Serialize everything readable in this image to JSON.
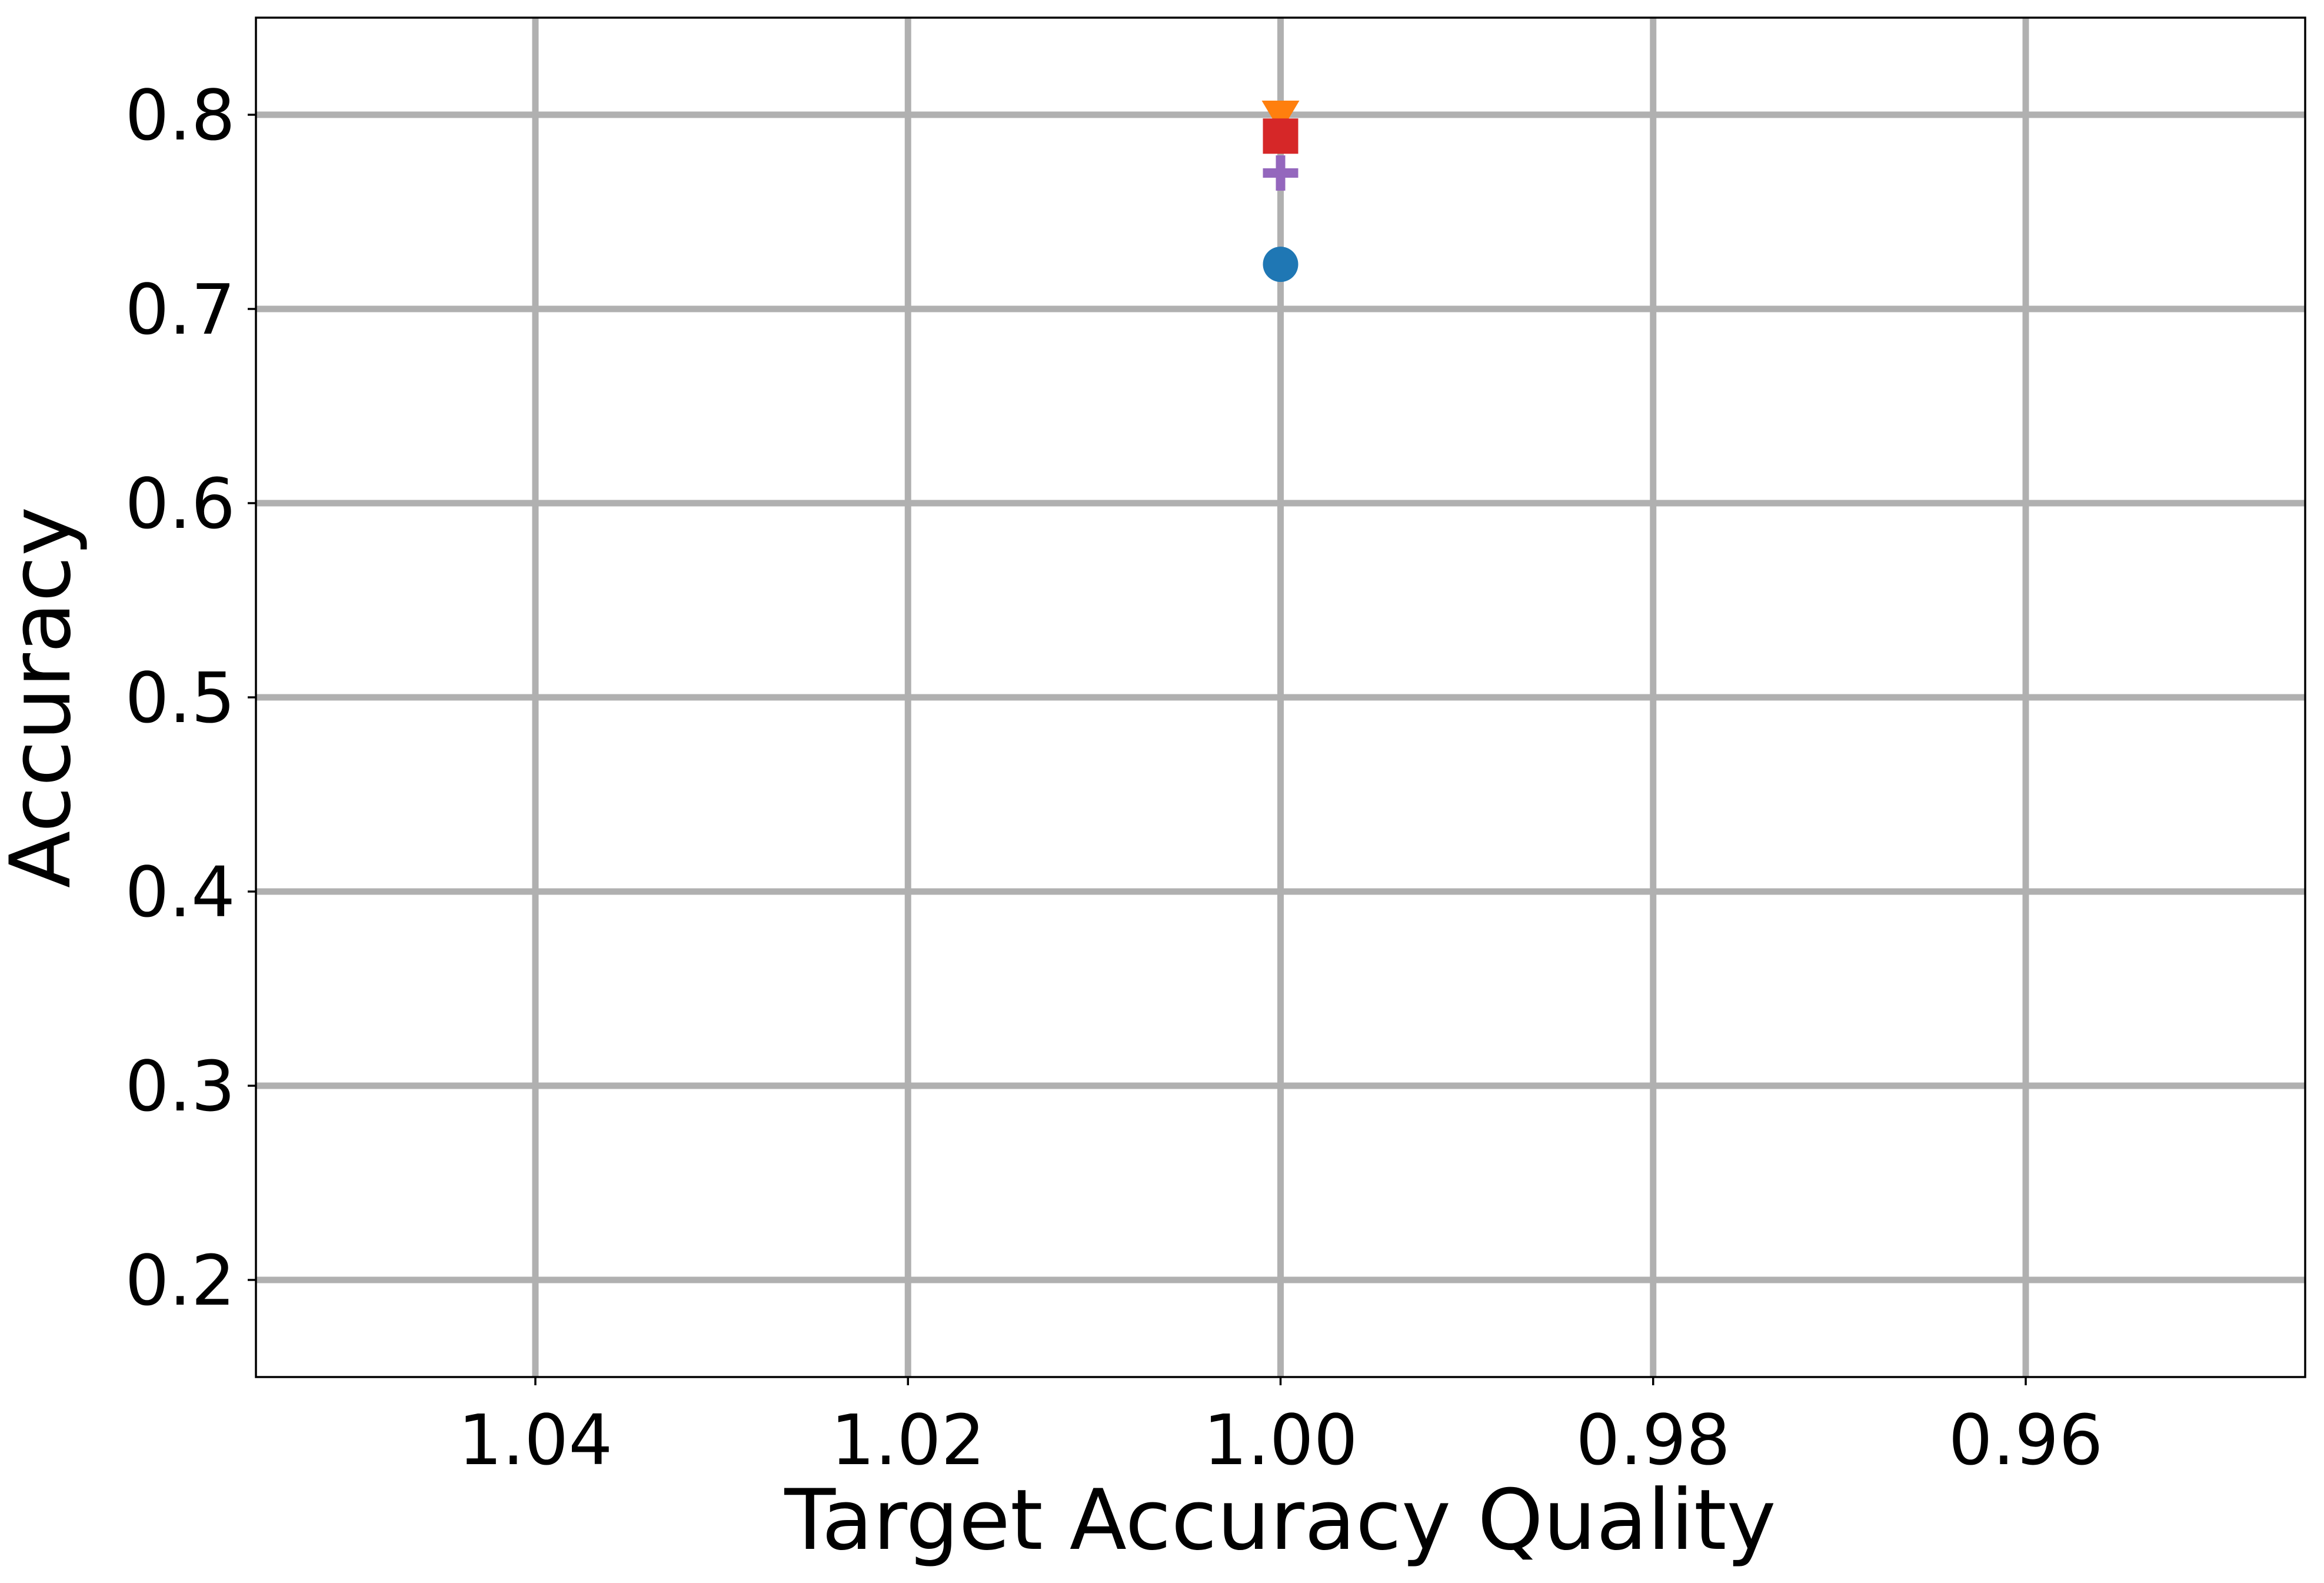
{
  "chart_data": {
    "type": "scatter",
    "xlabel": "Target Accuracy Quality",
    "ylabel": "Accuracy",
    "x_inverted": true,
    "xlim": [
      1.055,
      0.945
    ],
    "ylim": [
      0.15,
      0.85
    ],
    "xticks": [
      1.04,
      1.02,
      1.0,
      0.98,
      0.96
    ],
    "xtick_labels": [
      "1.04",
      "1.02",
      "1.00",
      "0.98",
      "0.96"
    ],
    "yticks": [
      0.2,
      0.3,
      0.4,
      0.5,
      0.6,
      0.7,
      0.8
    ],
    "ytick_labels": [
      "0.2",
      "0.3",
      "0.4",
      "0.5",
      "0.6",
      "0.7",
      "0.8"
    ],
    "grid": true,
    "series": [
      {
        "x": [
          1.0
        ],
        "y": [
          0.723
        ],
        "marker": "circle",
        "color": "#1f77b4"
      },
      {
        "x": [
          1.0
        ],
        "y": [
          0.8
        ],
        "marker": "triangle-down",
        "color": "#ff7f0e"
      },
      {
        "x": [
          1.0
        ],
        "y": [
          0.789
        ],
        "marker": "square",
        "color": "#d62728"
      },
      {
        "x": [
          1.0
        ],
        "y": [
          0.77
        ],
        "marker": "plus",
        "color": "#9467bd"
      }
    ]
  }
}
